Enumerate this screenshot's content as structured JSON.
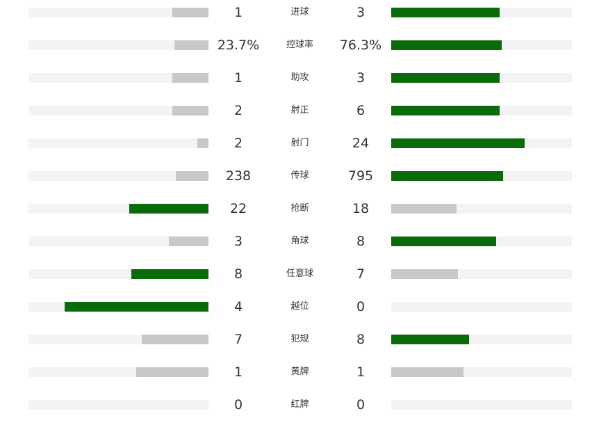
{
  "colors": {
    "track": "#f3f3f3",
    "leading": "#0a6b0a",
    "trailing": "#c8c8c8"
  },
  "chart_data": {
    "type": "bar",
    "categories": [
      "进球",
      "控球率",
      "助攻",
      "射正",
      "射门",
      "传球",
      "抢断",
      "角球",
      "任意球",
      "越位",
      "犯规",
      "黄牌",
      "红牌"
    ],
    "series": [
      {
        "display": [
          "1",
          "23.7%",
          "1",
          "2",
          "2",
          "238",
          "22",
          "3",
          "8",
          "4",
          "7",
          "1",
          "0"
        ],
        "values": [
          1,
          23.7,
          1,
          2,
          2,
          238,
          22,
          3,
          8,
          4,
          7,
          1,
          0
        ],
        "fill_fraction": [
          0.2,
          0.19,
          0.2,
          0.2,
          0.06,
          0.18,
          0.44,
          0.22,
          0.43,
          0.8,
          0.37,
          0.4,
          0
        ]
      },
      {
        "display": [
          "3",
          "76.3%",
          "3",
          "6",
          "24",
          "795",
          "18",
          "8",
          "7",
          "0",
          "8",
          "1",
          "0"
        ],
        "values": [
          3,
          76.3,
          3,
          6,
          24,
          795,
          18,
          8,
          7,
          0,
          8,
          1,
          0
        ],
        "fill_fraction": [
          0.6,
          0.61,
          0.6,
          0.6,
          0.74,
          0.62,
          0.36,
          0.58,
          0.37,
          0,
          0.43,
          0.4,
          0
        ]
      }
    ]
  }
}
